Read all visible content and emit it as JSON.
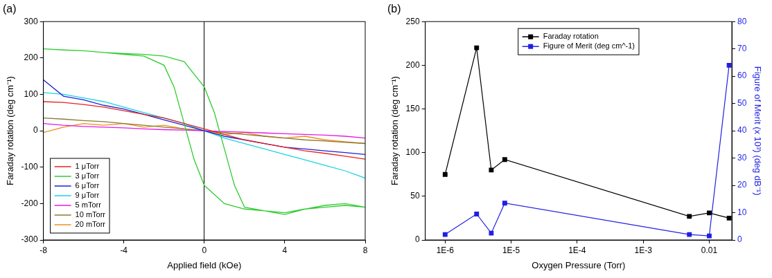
{
  "chart_data": [
    {
      "type": "line",
      "title": "(a)",
      "x_label": "Applied field (kOe)",
      "y_label": "Faraday rotation (deg cm⁻¹)",
      "xlim": [
        -8,
        8
      ],
      "xticks": [
        -8,
        -4,
        0,
        4,
        8
      ],
      "ylim": [
        -300,
        300
      ],
      "yticks": [
        -300,
        -200,
        -100,
        0,
        100,
        200,
        300
      ],
      "grid": false,
      "legend": "lower left",
      "series": [
        {
          "name": "1 μTorr",
          "color": "#e8211d",
          "x": [
            -8,
            -7,
            -6,
            -5,
            -4,
            -3,
            -2,
            -1,
            0,
            1,
            2,
            3,
            4,
            5,
            6,
            7,
            8
          ],
          "values": [
            80,
            78,
            72,
            65,
            55,
            45,
            35,
            20,
            5,
            -10,
            -25,
            -35,
            -45,
            -55,
            -62,
            -70,
            -78
          ]
        },
        {
          "name": "3 μTorr",
          "color": "#2ecc2e",
          "x": [
            -8,
            -7,
            -6,
            -5,
            -4,
            -3,
            -2,
            -1,
            0,
            0.5,
            1,
            1.5,
            2,
            3,
            4,
            5,
            6,
            7,
            8,
            8,
            7,
            6,
            5,
            4,
            3,
            2,
            1,
            0,
            -0.5,
            -1,
            -1.5,
            -2,
            -3,
            -4,
            -5,
            -6,
            -7,
            -8
          ],
          "values": [
            225,
            222,
            220,
            215,
            212,
            210,
            205,
            190,
            120,
            50,
            -50,
            -150,
            -210,
            -220,
            -230,
            -215,
            -205,
            -200,
            -210,
            -210,
            -205,
            -210,
            -215,
            -225,
            -220,
            -215,
            -200,
            -150,
            -80,
            20,
            120,
            180,
            205,
            210,
            215,
            220,
            222,
            225
          ]
        },
        {
          "name": "6 μTorr",
          "color": "#1f1fd6",
          "x": [
            -8,
            -7,
            -6,
            -5,
            -4,
            -3,
            -2,
            -1,
            0,
            1,
            2,
            3,
            4,
            5,
            6,
            7,
            8
          ],
          "values": [
            140,
            95,
            85,
            70,
            60,
            45,
            30,
            15,
            0,
            -15,
            -25,
            -35,
            -45,
            -50,
            -55,
            -60,
            -65
          ]
        },
        {
          "name": "9 μTorr",
          "color": "#19d3e6",
          "x": [
            -8,
            -7,
            -6,
            -5,
            -4,
            -3,
            -2,
            -1,
            0,
            1,
            2,
            3,
            4,
            5,
            6,
            7,
            8
          ],
          "values": [
            105,
            100,
            90,
            80,
            65,
            50,
            35,
            20,
            0,
            -20,
            -35,
            -50,
            -65,
            -80,
            -95,
            -110,
            -130
          ]
        },
        {
          "name": "5 mTorr",
          "color": "#e619e6",
          "x": [
            -8,
            -7,
            -6,
            -5,
            -4,
            -3,
            -2,
            -1,
            0,
            1,
            2,
            3,
            4,
            5,
            6,
            7,
            8
          ],
          "values": [
            20,
            15,
            12,
            10,
            8,
            5,
            3,
            2,
            0,
            -2,
            -4,
            -6,
            -8,
            -10,
            -12,
            -15,
            -20
          ]
        },
        {
          "name": "10 mTorr",
          "color": "#8c7a32",
          "x": [
            -8,
            -7,
            -6,
            -5,
            -4,
            -3,
            -2,
            -1,
            0,
            1,
            2,
            3,
            4,
            5,
            6,
            7,
            8
          ],
          "values": [
            35,
            32,
            28,
            25,
            20,
            15,
            10,
            5,
            0,
            -5,
            -10,
            -15,
            -20,
            -25,
            -28,
            -32,
            -35
          ]
        },
        {
          "name": "20 mTorr",
          "color": "#f28c1e",
          "x": [
            -8,
            -7,
            -6,
            -5,
            -4,
            -3,
            -2,
            -1,
            0,
            1,
            2,
            3,
            4,
            5,
            6,
            7,
            8
          ],
          "values": [
            -5,
            10,
            20,
            15,
            20,
            10,
            15,
            5,
            0,
            -10,
            -5,
            -15,
            -20,
            -15,
            -25,
            -30,
            -35
          ]
        }
      ]
    },
    {
      "type": "line",
      "title": "(b)",
      "x_label": "Oxygen Pressure (Torr)",
      "y_label": "Faraday rotation (deg cm⁻¹)",
      "y2_label": "Figure of Merit (x 10³) (deg dB⁻¹)",
      "log": "x",
      "xlim": [
        5e-07,
        0.022
      ],
      "xticks": [
        {
          "value": 1e-06,
          "label": "1E-6"
        },
        {
          "value": 1e-05,
          "label": "1E-5"
        },
        {
          "value": 0.0001,
          "label": "1E-4"
        },
        {
          "value": 0.001,
          "label": "1E-3"
        },
        0.01
      ],
      "ylim": [
        0,
        250
      ],
      "yticks": [
        0,
        50,
        100,
        150,
        200,
        250
      ],
      "y2lim": [
        0,
        80
      ],
      "y2ticks": [
        0,
        10,
        20,
        30,
        40,
        50,
        60,
        70,
        80
      ],
      "grid": false,
      "legend": "upper center",
      "marker": "square",
      "x": [
        1e-06,
        3e-06,
        5e-06,
        8e-06,
        0.005,
        0.01,
        0.02
      ],
      "series": [
        {
          "name": "Faraday rotation",
          "color": "#000000",
          "values": [
            75,
            220,
            80,
            92,
            27,
            31,
            25
          ]
        },
        {
          "name": "Figure of Merit (deg cm^-1)",
          "color": "#1f1fe6",
          "axis": "y2",
          "values": [
            2,
            9.5,
            2.5,
            13.5,
            2,
            1.5,
            64
          ]
        }
      ]
    }
  ]
}
